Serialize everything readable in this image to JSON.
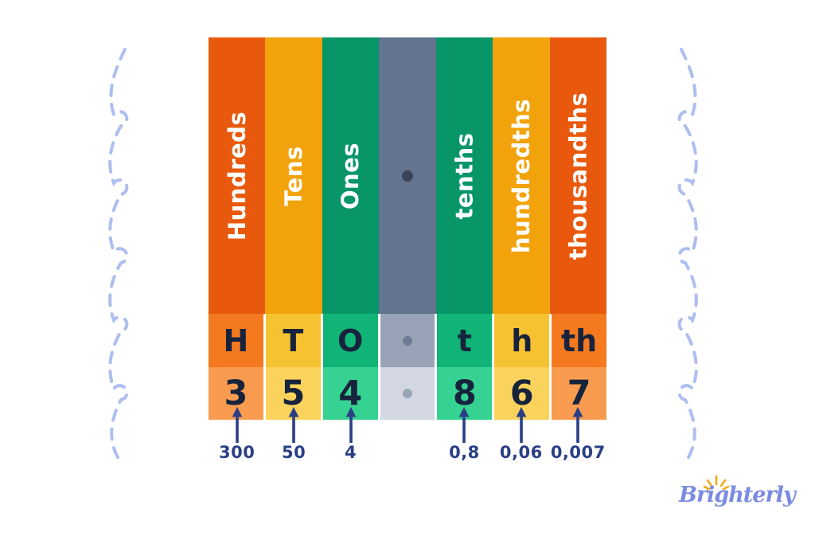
{
  "place_value_chart": {
    "columns": [
      {
        "id": "hundreds",
        "name": "Hundreds",
        "abbr": "H",
        "digit": "3",
        "expanded": "300",
        "color_top": "#E8590E",
        "color_mid": "#F4791F",
        "color_light": "#F89B4F"
      },
      {
        "id": "tens",
        "name": "Tens",
        "abbr": "T",
        "digit": "5",
        "expanded": "50",
        "color_top": "#F2A30B",
        "color_mid": "#F7C231",
        "color_light": "#F9D35B"
      },
      {
        "id": "ones",
        "name": "Ones",
        "abbr": "O",
        "digit": "4",
        "expanded": "4",
        "color_top": "#089668",
        "color_mid": "#10B476",
        "color_light": "#36D291"
      },
      {
        "id": "decimal-point",
        "name": "",
        "abbr": "",
        "digit": "",
        "expanded": "",
        "color_top": "#64748E",
        "color_mid": "#98A3B8",
        "color_light": "#D2D7E1",
        "is_separator": true
      },
      {
        "id": "tenths",
        "name": "tenths",
        "abbr": "t",
        "digit": "8",
        "expanded": "0,8",
        "color_top": "#089668",
        "color_mid": "#10B476",
        "color_light": "#36D291"
      },
      {
        "id": "hundredths",
        "name": "hundredths",
        "abbr": "h",
        "digit": "6",
        "expanded": "0,06",
        "color_top": "#F2A30B",
        "color_mid": "#F7C231",
        "color_light": "#F9D35B"
      },
      {
        "id": "thousandths",
        "name": "thousandths",
        "abbr": "th",
        "digit": "7",
        "expanded": "0,007",
        "color_top": "#E8590E",
        "color_mid": "#F4791F",
        "color_light": "#F89B4F"
      }
    ]
  },
  "colors": {
    "cell_text": "#17233C",
    "annotation": "#2A3F85",
    "dot_header": "#39445A",
    "dot_letter": "#6F7B94",
    "dot_digit": "#9AA5BB",
    "squiggle": "#ADBEF0",
    "logo_text": "#7B8BE2",
    "logo_sparkle": "#F2A918"
  },
  "logo": {
    "text": "Brighterly"
  }
}
